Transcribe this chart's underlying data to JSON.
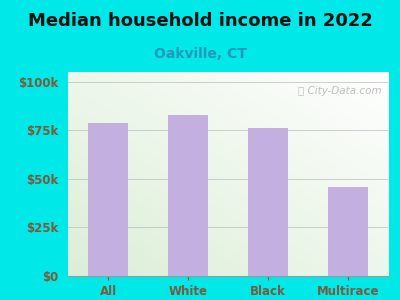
{
  "title": "Median household income in 2022",
  "subtitle": "Oakville, CT",
  "categories": [
    "All",
    "White",
    "Black",
    "Multirace"
  ],
  "values": [
    79000,
    83000,
    76000,
    46000
  ],
  "bar_color": "#c4b0e0",
  "title_fontsize": 13,
  "subtitle_fontsize": 10,
  "subtitle_color": "#2299bb",
  "title_color": "#111111",
  "background_outer": "#00e8e8",
  "yticks": [
    0,
    25000,
    50000,
    75000,
    100000
  ],
  "ytick_labels": [
    "$0",
    "$25k",
    "$50k",
    "$75k",
    "$100k"
  ],
  "tick_color": "#7a5a3a",
  "watermark": "City-Data.com",
  "ylim": [
    0,
    105000
  ]
}
